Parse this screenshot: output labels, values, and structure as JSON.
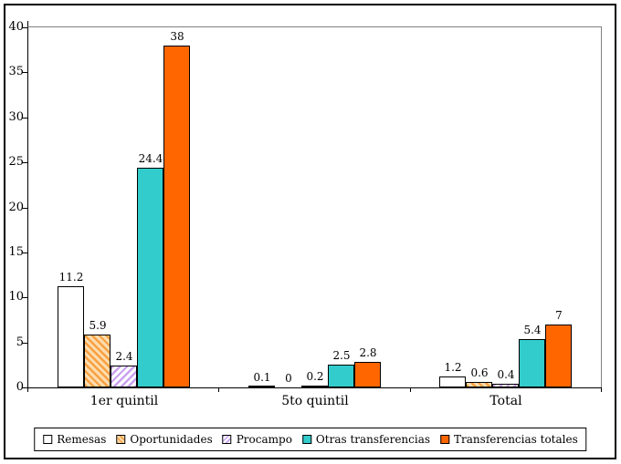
{
  "chart_data": {
    "type": "bar",
    "title": "",
    "xlabel": "",
    "ylabel": "",
    "categories": [
      "1er quintil",
      "5to quintil",
      "Total"
    ],
    "series": [
      {
        "name": "Remesas",
        "values": [
          11.2,
          0.1,
          1.2
        ],
        "fill": "#FFFFFF"
      },
      {
        "name": "Oportunidades",
        "values": [
          5.9,
          0,
          0.6
        ],
        "pattern": "diagonal-down",
        "pattern_bg": "#FCDCAE",
        "pattern_fg": "#F9A041"
      },
      {
        "name": "Procampo",
        "values": [
          2.4,
          0.2,
          0.4
        ],
        "pattern": "diagonal-up",
        "pattern_bg": "#FFFFFF",
        "pattern_fg": "#C9A1F0"
      },
      {
        "name": "Otras transferencias",
        "values": [
          24.4,
          2.5,
          5.4
        ],
        "fill": "#33CCCC"
      },
      {
        "name": "Transferencias totales",
        "values": [
          38,
          2.8,
          7
        ],
        "fill": "#FF6600"
      }
    ],
    "ylim": [
      0,
      40
    ],
    "ytick_step": 5,
    "yticks": [
      0,
      5,
      10,
      15,
      20,
      25,
      30,
      35,
      40
    ],
    "value_labels_shown": true,
    "gridlines": "top-border-only",
    "legend_position": "bottom-center",
    "colors": {
      "axis": "#000000",
      "plot_frame": "#808080",
      "bar_border": "#000000",
      "background": "#FFFFFF",
      "outer_border": "#000000"
    }
  }
}
